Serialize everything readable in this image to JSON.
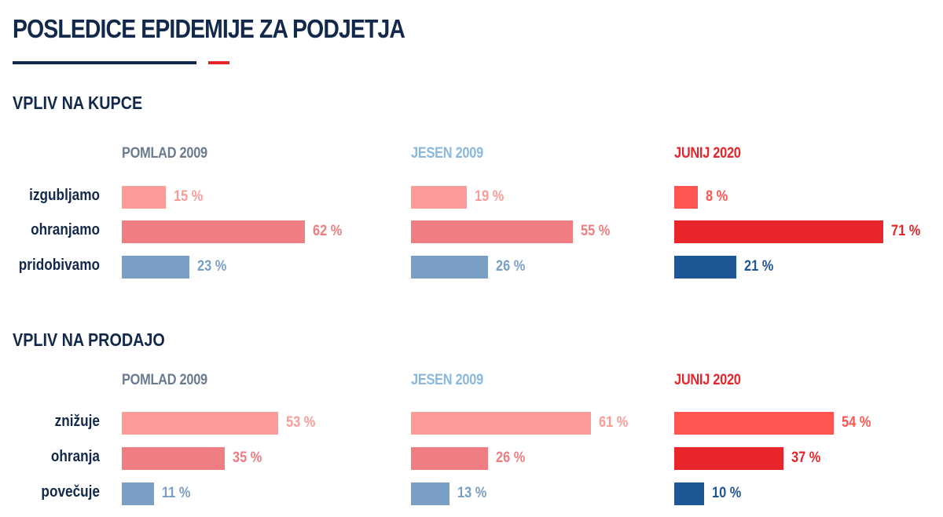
{
  "title": "POSLEDICE EPIDEMIJE ZA PODJETJA",
  "colors": {
    "navy": "#13294b",
    "accent_red": "#e8252b",
    "period_colors": [
      "#6b7b8f",
      "#8ab8dc",
      "#e8252b"
    ],
    "neg_2009_light": "#fb9c98",
    "mid_2009": "#f07d82",
    "pos_2009": "#7a9fc4",
    "neg_2020": "#fd5552",
    "mid_2020": "#e8252b",
    "pos_2020": "#1f5696"
  },
  "chart_data": [
    {
      "type": "bar",
      "title": "VPLIV NA KUPCE",
      "periods": [
        "POMLAD 2009",
        "JESEN 2009",
        "JUNIJ 2020"
      ],
      "categories": [
        "izgubljamo",
        "ohranjamo",
        "pridobivamo"
      ],
      "series": [
        {
          "name": "POMLAD 2009",
          "values": [
            15,
            62,
            23
          ],
          "labels": [
            "15 %",
            "62 %",
            "23 %"
          ]
        },
        {
          "name": "JESEN 2009",
          "values": [
            19,
            55,
            26
          ],
          "labels": [
            "19 %",
            "55 %",
            "26 %"
          ]
        },
        {
          "name": "JUNIJ 2020",
          "values": [
            8,
            71,
            21
          ],
          "labels": [
            "8 %",
            "71 %",
            "21 %"
          ]
        }
      ],
      "unit": "%",
      "orientation": "horizontal"
    },
    {
      "type": "bar",
      "title": "VPLIV NA PRODAJO",
      "periods": [
        "POMLAD 2009",
        "JESEN 2009",
        "JUNIJ 2020"
      ],
      "categories": [
        "znižuje",
        "ohranja",
        "povečuje"
      ],
      "series": [
        {
          "name": "POMLAD 2009",
          "values": [
            53,
            35,
            11
          ],
          "labels": [
            "53 %",
            "35 %",
            "11 %"
          ]
        },
        {
          "name": "JESEN 2009",
          "values": [
            61,
            26,
            13
          ],
          "labels": [
            "61 %",
            "26 %",
            "13 %"
          ]
        },
        {
          "name": "JUNIJ 2020",
          "values": [
            54,
            37,
            10
          ],
          "labels": [
            "54 %",
            "37 %",
            "10 %"
          ]
        }
      ],
      "unit": "%",
      "orientation": "horizontal"
    }
  ]
}
